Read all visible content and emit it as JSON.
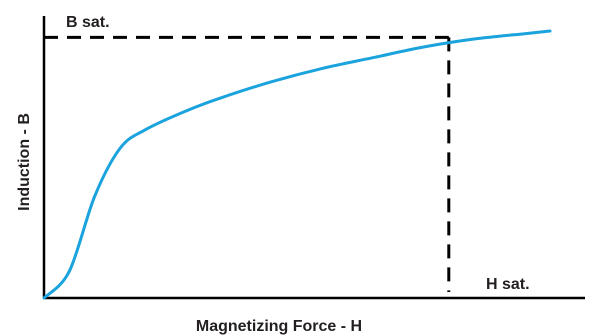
{
  "chart_data": {
    "type": "line",
    "title": "",
    "xlabel": "Magnetizing Force - H",
    "ylabel": "Induction - B",
    "grid": false,
    "axis_ticks": false,
    "annotations": {
      "b_sat": "B sat.",
      "h_sat": "H sat."
    },
    "series": [
      {
        "color": "#1aa3dd",
        "x": [
          0,
          0.05,
          0.1,
          0.15,
          0.2,
          0.28,
          0.35,
          0.45,
          0.55,
          0.65,
          0.75,
          0.85,
          0.95,
          1.0
        ],
        "y": [
          0,
          0.1,
          0.38,
          0.56,
          0.63,
          0.7,
          0.75,
          0.81,
          0.86,
          0.9,
          0.94,
          0.97,
          0.99,
          1.0
        ]
      }
    ],
    "saturation_point": {
      "x": 0.8,
      "y": 0.98
    },
    "xlim": [
      0,
      1
    ],
    "ylim": [
      0,
      1
    ],
    "colors": {
      "axis": "#000000",
      "curve": "#1aa3dd",
      "dashed": "#000000",
      "text": "#231f20"
    }
  }
}
